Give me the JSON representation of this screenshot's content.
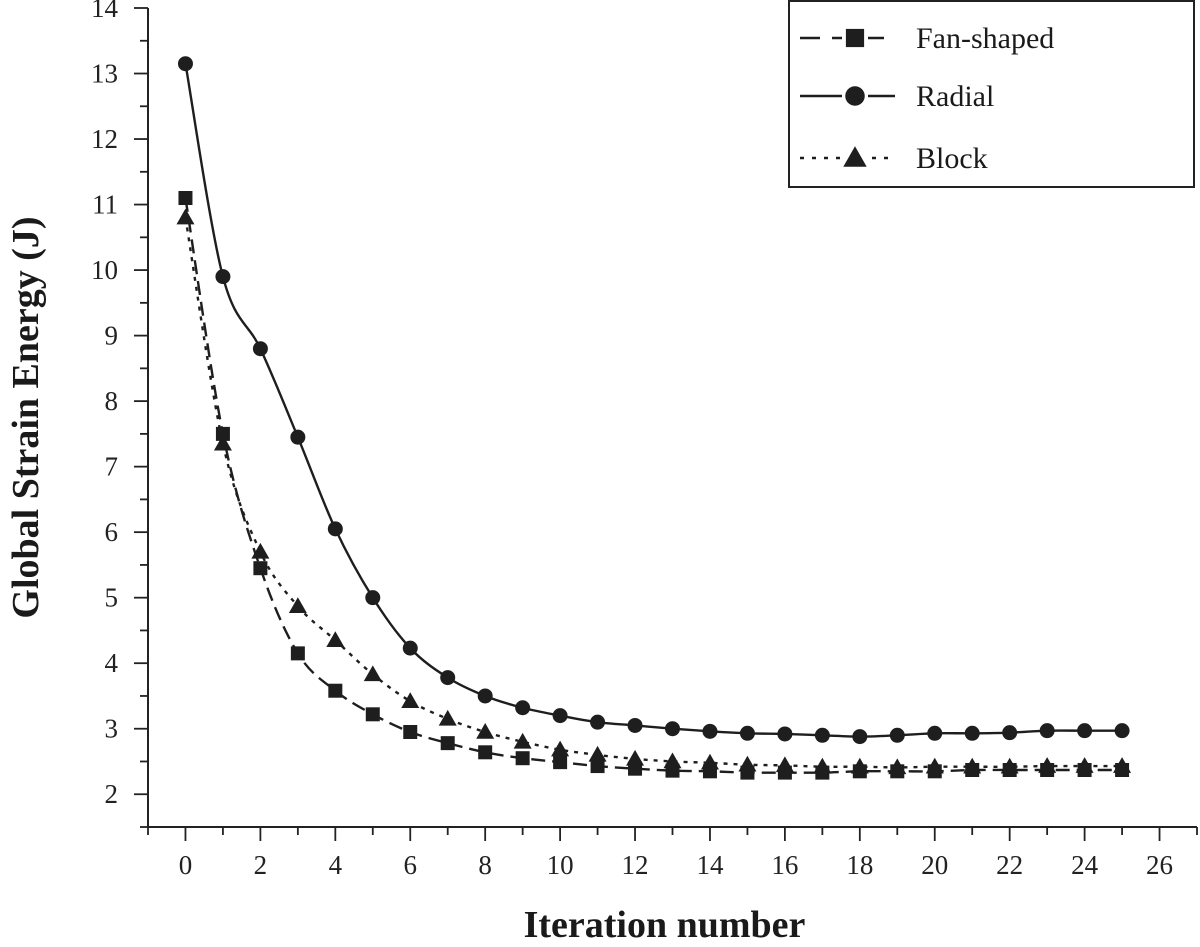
{
  "chart_data": {
    "type": "line",
    "xlabel": "Iteration number",
    "ylabel": "Global Strain Energy (J)",
    "xlim": [
      -1,
      27
    ],
    "ylim": [
      1.5,
      14
    ],
    "xticks": [
      0,
      2,
      4,
      6,
      8,
      10,
      12,
      14,
      16,
      18,
      20,
      22,
      24,
      26
    ],
    "yticks": [
      2,
      3,
      4,
      5,
      6,
      7,
      8,
      9,
      10,
      11,
      12,
      13,
      14
    ],
    "grid": false,
    "legend_position": "top-right",
    "x": [
      0,
      1,
      2,
      3,
      4,
      5,
      6,
      7,
      8,
      9,
      10,
      11,
      12,
      13,
      14,
      15,
      16,
      17,
      18,
      19,
      20,
      21,
      22,
      23,
      24,
      25
    ],
    "series": [
      {
        "name": "Fan-shaped",
        "marker": "square",
        "line": "dashed",
        "values": [
          11.1,
          7.5,
          5.45,
          4.15,
          3.58,
          3.22,
          2.95,
          2.78,
          2.64,
          2.55,
          2.49,
          2.43,
          2.39,
          2.36,
          2.35,
          2.33,
          2.33,
          2.33,
          2.35,
          2.35,
          2.35,
          2.37,
          2.37,
          2.37,
          2.37,
          2.37
        ]
      },
      {
        "name": "Radial",
        "marker": "circle",
        "line": "solid",
        "values": [
          13.15,
          9.9,
          8.8,
          7.45,
          6.05,
          5.0,
          4.23,
          3.78,
          3.5,
          3.32,
          3.2,
          3.1,
          3.05,
          3.0,
          2.96,
          2.93,
          2.92,
          2.9,
          2.88,
          2.9,
          2.93,
          2.93,
          2.94,
          2.97,
          2.97,
          2.97
        ]
      },
      {
        "name": "Block",
        "marker": "triangle",
        "line": "dotted",
        "values": [
          10.8,
          7.35,
          5.7,
          4.87,
          4.35,
          3.83,
          3.42,
          3.15,
          2.95,
          2.8,
          2.68,
          2.6,
          2.54,
          2.5,
          2.48,
          2.45,
          2.44,
          2.42,
          2.42,
          2.41,
          2.42,
          2.42,
          2.42,
          2.43,
          2.43,
          2.43
        ]
      }
    ]
  }
}
